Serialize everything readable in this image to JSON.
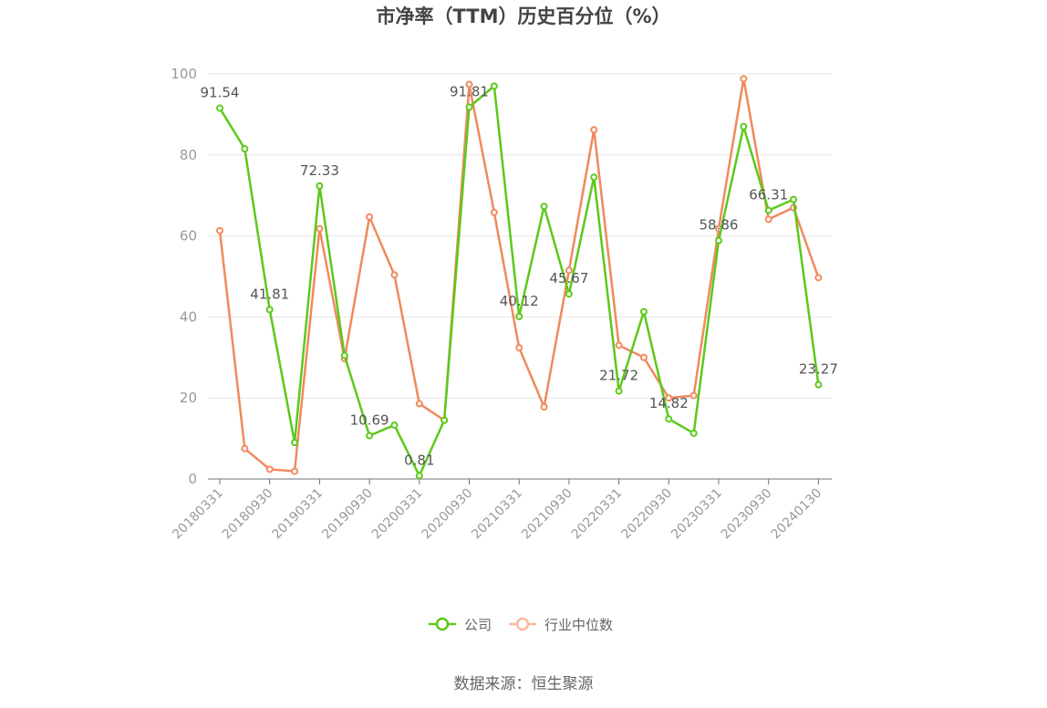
{
  "chart_data": {
    "type": "line",
    "title": "市净率（TTM）历史百分位（%）",
    "source": "数据来源：恒生聚源",
    "ylim": [
      0,
      100
    ],
    "yticks": [
      "0",
      "20",
      "40",
      "60",
      "80",
      "100"
    ],
    "grid": true,
    "legend_position": "bottom",
    "x": [
      "20180331",
      "20180630",
      "20180930",
      "20181231",
      "20190331",
      "20190630",
      "20190930",
      "20191231",
      "20200331",
      "20200630",
      "20200930",
      "20201231",
      "20210331",
      "20210630",
      "20210930",
      "20211231",
      "20220331",
      "20220630",
      "20220930",
      "20221231",
      "20230331",
      "20230630",
      "20230930",
      "20231231",
      "20240130"
    ],
    "xtick_labels": [
      "20180331",
      "20180930",
      "20190331",
      "20190930",
      "20200331",
      "20200930",
      "20210331",
      "20210930",
      "20220331",
      "20220930",
      "20230331",
      "20230930",
      "20240130"
    ],
    "series": [
      {
        "name": "公司",
        "color": "#5cc91a",
        "values": [
          91.54,
          81.5,
          41.81,
          9.0,
          72.33,
          30.5,
          10.69,
          13.3,
          0.81,
          14.5,
          91.81,
          97.0,
          40.12,
          67.3,
          45.67,
          74.5,
          21.72,
          41.3,
          14.82,
          11.3,
          58.86,
          87.0,
          66.31,
          69.0,
          23.27
        ],
        "labels": [
          "91.54",
          null,
          "41.81",
          null,
          "72.33",
          null,
          "10.69",
          null,
          "0.81",
          null,
          "91.81",
          null,
          "40.12",
          null,
          "45.67",
          null,
          "21.72",
          null,
          "14.82",
          null,
          "58.86",
          null,
          "66.31",
          null,
          "23.27"
        ]
      },
      {
        "name": "行业中位数",
        "color": "#f08a5d",
        "values": [
          61.3,
          7.5,
          2.4,
          1.9,
          61.8,
          29.7,
          64.7,
          50.4,
          18.6,
          14.5,
          97.4,
          65.8,
          32.4,
          17.8,
          51.5,
          86.2,
          33.0,
          30.0,
          20.0,
          20.6,
          61.8,
          98.8,
          64.1,
          67.0,
          49.7
        ]
      }
    ]
  }
}
